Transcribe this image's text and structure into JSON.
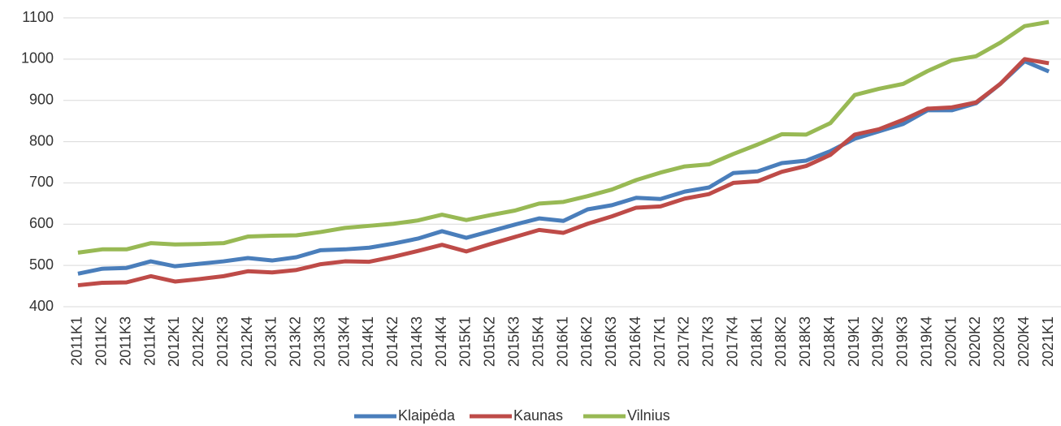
{
  "chart_data": {
    "type": "line",
    "categories": [
      "2011K1",
      "2011K2",
      "2011K3",
      "2011K4",
      "2012K1",
      "2012K2",
      "2012K3",
      "2012K4",
      "2013K1",
      "2013K2",
      "2013K3",
      "2013K4",
      "2014K1",
      "2014K2",
      "2014K3",
      "2014K4",
      "2015K1",
      "2015K2",
      "2015K3",
      "2015K4",
      "2016K1",
      "2016K2",
      "2016K3",
      "2016K4",
      "2017K1",
      "2017K2",
      "2017K3",
      "2017K4",
      "2018K1",
      "2018K2",
      "2018K3",
      "2018K4",
      "2019K1",
      "2019K2",
      "2019K3",
      "2019K4",
      "2020K1",
      "2020K2",
      "2020K3",
      "2020K4",
      "2021K1"
    ],
    "series": [
      {
        "name": "Klaipėda",
        "color": "#4a7ebb",
        "values": [
          480,
          492,
          494,
          510,
          498,
          504,
          510,
          518,
          512,
          520,
          537,
          539,
          543,
          553,
          565,
          583,
          567,
          583,
          599,
          614,
          608,
          636,
          646,
          664,
          661,
          679,
          689,
          724,
          728,
          748,
          754,
          777,
          807,
          825,
          843,
          876,
          876,
          893,
          940,
          995,
          970
        ]
      },
      {
        "name": "Kaunas",
        "color": "#be4b48",
        "values": [
          452,
          458,
          459,
          474,
          461,
          467,
          474,
          486,
          483,
          489,
          503,
          510,
          509,
          521,
          535,
          550,
          534,
          552,
          569,
          586,
          579,
          601,
          619,
          640,
          643,
          662,
          673,
          700,
          704,
          727,
          741,
          768,
          817,
          830,
          853,
          880,
          883,
          895,
          940,
          1000,
          990
        ]
      },
      {
        "name": "Vilnius",
        "color": "#98b954",
        "values": [
          531,
          539,
          539,
          554,
          551,
          552,
          554,
          570,
          572,
          573,
          581,
          591,
          596,
          601,
          609,
          623,
          610,
          622,
          633,
          650,
          654,
          668,
          684,
          707,
          725,
          740,
          745,
          770,
          793,
          818,
          817,
          845,
          913,
          928,
          940,
          971,
          997,
          1007,
          1040,
          1080,
          1090
        ]
      }
    ],
    "ylim": [
      400,
      1100
    ],
    "yticks": [
      400,
      500,
      600,
      700,
      800,
      900,
      1000,
      1100
    ],
    "grid": true,
    "legend": "bottom"
  }
}
